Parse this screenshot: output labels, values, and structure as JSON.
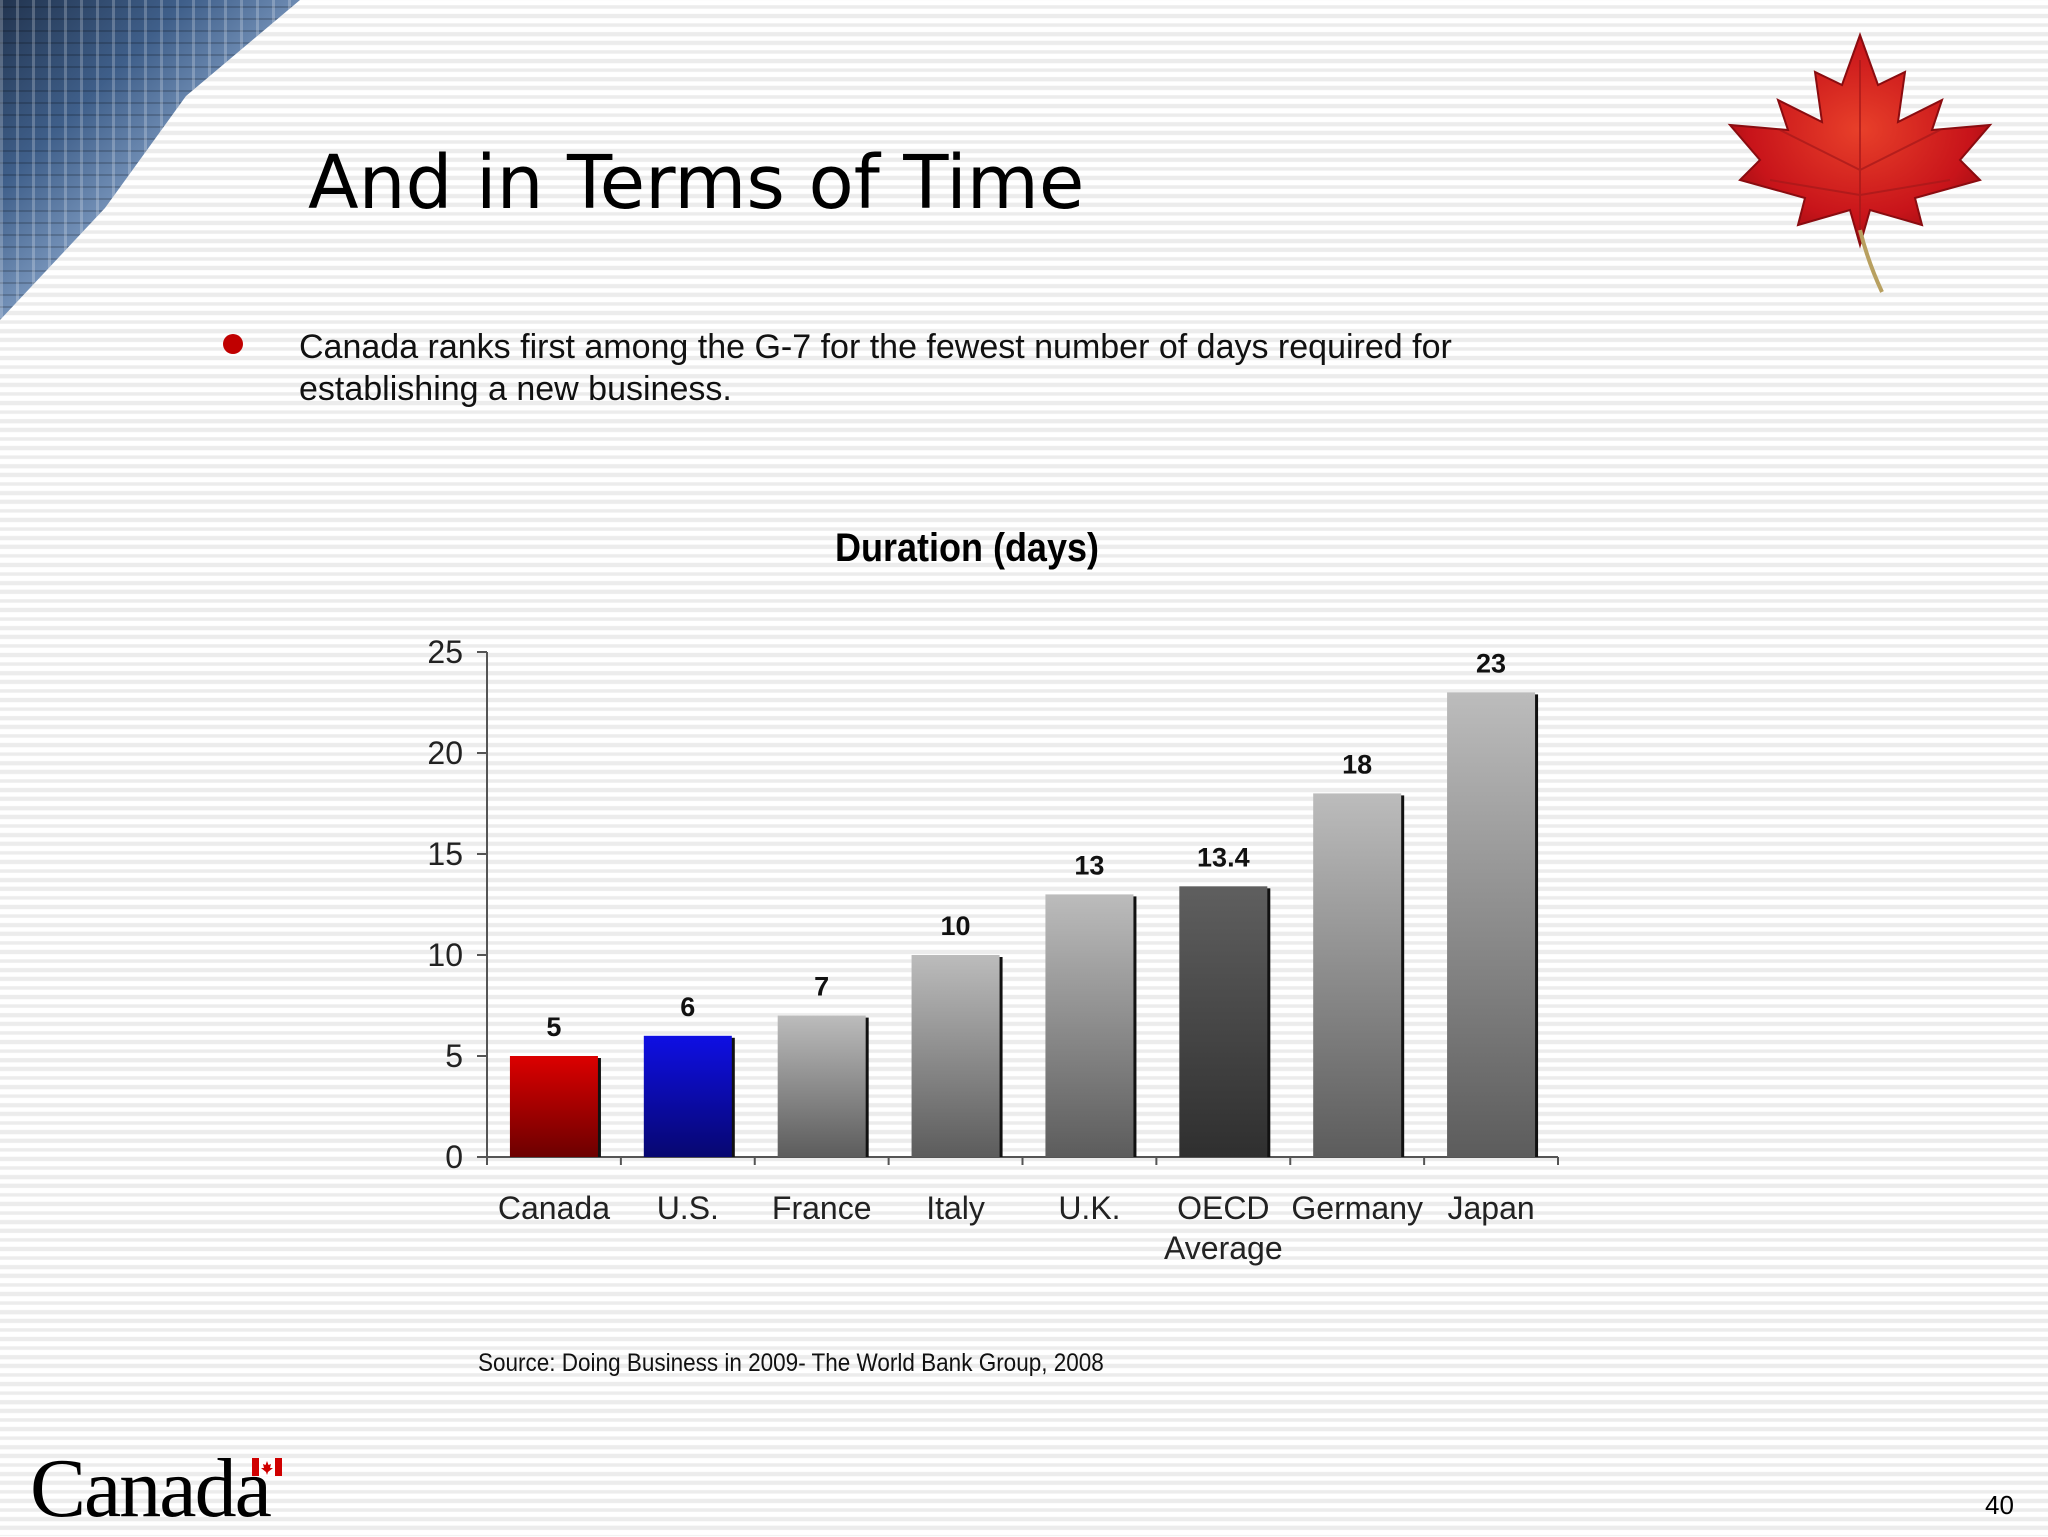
{
  "slide": {
    "title": "And in Terms of Time",
    "bullet": "Canada ranks first among the G-7 for the fewest number of days required for establishing a new business.",
    "source": "Source: Doing Business in 2009- The World Bank Group, 2008",
    "logo_text": "Canada",
    "page_number": "40"
  },
  "chart_data": {
    "type": "bar",
    "title": "Duration (days)",
    "xlabel": "",
    "ylabel": "",
    "categories": [
      "Canada",
      "U.S.",
      "France",
      "Italy",
      "U.K.",
      "OECD Average",
      "Germany",
      "Japan"
    ],
    "values": [
      5,
      6,
      7,
      10,
      13,
      13.4,
      18,
      23
    ],
    "data_labels": [
      "5",
      "6",
      "7",
      "10",
      "13",
      "13.4",
      "18",
      "23"
    ],
    "ylim": [
      0,
      25
    ],
    "yticks": [
      0,
      5,
      10,
      15,
      20,
      25
    ],
    "grid": false,
    "legend": "none",
    "bar_colors": [
      "#c40000",
      "#0d0dcc",
      "#a8a8a8",
      "#a8a8a8",
      "#a8a8a8",
      "#555555",
      "#a8a8a8",
      "#a8a8a8"
    ]
  }
}
